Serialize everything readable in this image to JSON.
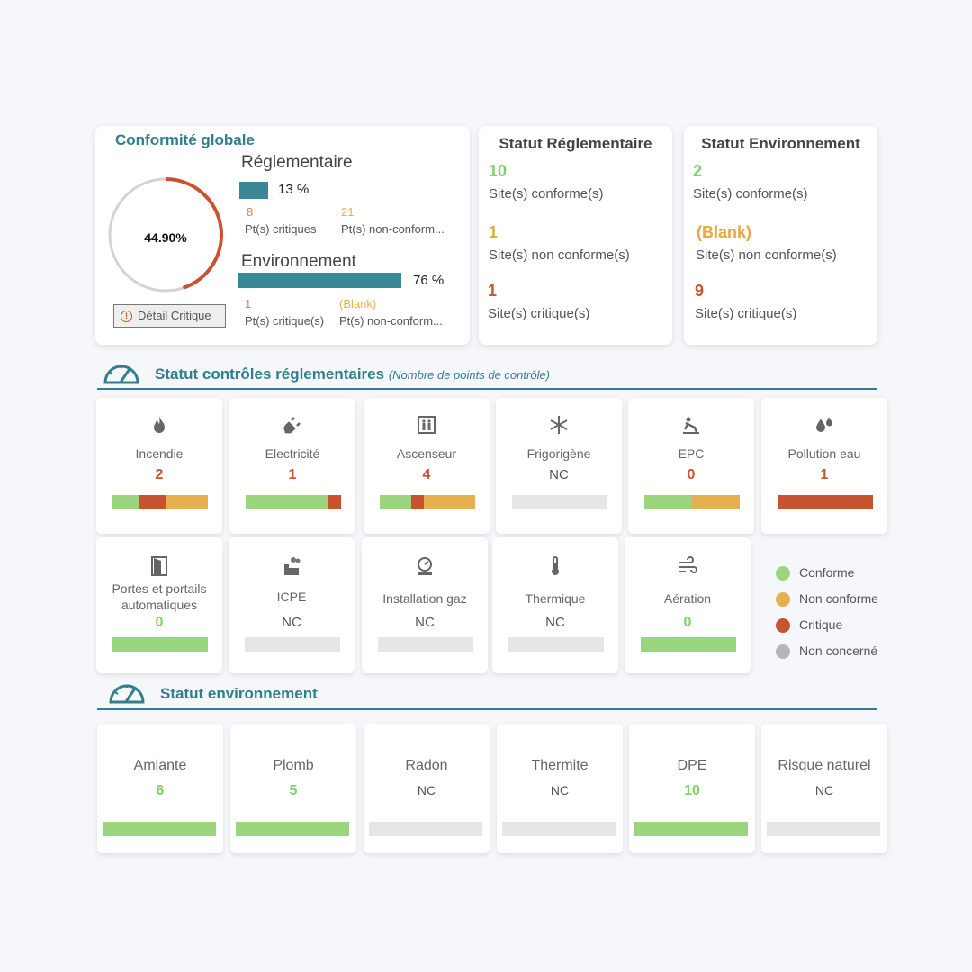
{
  "colors": {
    "green": "#9bd67f",
    "orange": "#e6b04f",
    "red": "#c9532e",
    "grey": "#e6e6e6",
    "teal": "#2f7f8c",
    "tealbar": "#3a8797"
  },
  "global": {
    "title": "Conformité globale",
    "percent": "44.90%",
    "gauge_fraction": 0.449,
    "detail_button": "Détail Critique",
    "reg": {
      "title": "Réglementaire",
      "pct": "13 %",
      "bar_fraction": 0.13,
      "crit_val": "8",
      "crit_lbl": "Pt(s) critiques",
      "nc_val": "21",
      "nc_lbl": "Pt(s) non-conform..."
    },
    "env": {
      "title": "Environnement",
      "pct": "76 %",
      "bar_fraction": 0.76,
      "crit_val": "1",
      "crit_lbl": "Pt(s) critique(s)",
      "nc_val": "(Blank)",
      "nc_lbl": "Pt(s) non-conform..."
    }
  },
  "statut_reg": {
    "title": "Statut Réglementaire",
    "conforme_val": "10",
    "conforme_lbl": "Site(s) conforme(s)",
    "nonconf_val": "1",
    "nonconf_lbl": "Site(s) non conforme(s)",
    "crit_val": "1",
    "crit_lbl": "Site(s) critique(s)"
  },
  "statut_env": {
    "title": "Statut Environnement",
    "conforme_val": "2",
    "conforme_lbl": "Site(s) conforme(s)",
    "nonconf_val": "(Blank)",
    "nonconf_lbl": "Site(s) non conforme(s)",
    "crit_val": "9",
    "crit_lbl": "Site(s) critique(s)"
  },
  "section_reg": {
    "title": "Statut contrôles réglementaires",
    "subtitle": "(Nombre de points de contrôle)"
  },
  "section_env": {
    "title": "Statut environnement"
  },
  "reg_tiles": [
    {
      "name": "Incendie",
      "value": "2",
      "icon": "fire-icon",
      "segments": [
        [
          "green",
          0.28
        ],
        [
          "red",
          0.28
        ],
        [
          "orange",
          0.44
        ]
      ]
    },
    {
      "name": "Electricité",
      "value": "1",
      "icon": "plug-icon",
      "segments": [
        [
          "green",
          0.87
        ],
        [
          "red",
          0.13
        ]
      ]
    },
    {
      "name": "Ascenseur",
      "value": "4",
      "icon": "elevator-icon",
      "segments": [
        [
          "green",
          0.33
        ],
        [
          "red",
          0.13
        ],
        [
          "orange",
          0.54
        ]
      ]
    },
    {
      "name": "Frigorigène",
      "value": "NC",
      "icon": "snowflake-icon",
      "segments": [
        [
          "grey",
          1
        ]
      ]
    },
    {
      "name": "EPC",
      "value": "0",
      "icon": "fall-protection-icon",
      "segments": [
        [
          "green",
          0.5
        ],
        [
          "orange",
          0.5
        ]
      ]
    },
    {
      "name": "Pollution eau",
      "value": "1",
      "icon": "water-drops-icon",
      "segments": [
        [
          "red",
          1
        ]
      ]
    },
    {
      "name": "Portes et portails automatiques",
      "value": "0",
      "icon": "door-icon",
      "segments": [
        [
          "green",
          1
        ]
      ]
    },
    {
      "name": "ICPE",
      "value": "NC",
      "icon": "factory-icon",
      "segments": [
        [
          "grey",
          1
        ]
      ]
    },
    {
      "name": "Installation gaz",
      "value": "NC",
      "icon": "gas-meter-icon",
      "segments": [
        [
          "grey",
          1
        ]
      ]
    },
    {
      "name": "Thermique",
      "value": "NC",
      "icon": "thermometer-icon",
      "segments": [
        [
          "grey",
          1
        ]
      ]
    },
    {
      "name": "Aération",
      "value": "0",
      "icon": "wind-icon",
      "segments": [
        [
          "green",
          1
        ]
      ]
    }
  ],
  "legend": [
    {
      "label": "Conforme",
      "color": "green"
    },
    {
      "label": "Non conforme",
      "color": "orange"
    },
    {
      "label": "Critique",
      "color": "red"
    },
    {
      "label": "Non concerné",
      "color": "grey2"
    }
  ],
  "env_tiles": [
    {
      "name": "Amiante",
      "value": "6",
      "segments": [
        [
          "green",
          1
        ]
      ]
    },
    {
      "name": "Plomb",
      "value": "5",
      "segments": [
        [
          "green",
          1
        ]
      ]
    },
    {
      "name": "Radon",
      "value": "NC",
      "segments": [
        [
          "grey",
          1
        ]
      ]
    },
    {
      "name": "Thermite",
      "value": "NC",
      "segments": [
        [
          "grey",
          1
        ]
      ]
    },
    {
      "name": "DPE",
      "value": "10",
      "segments": [
        [
          "green",
          1
        ]
      ]
    },
    {
      "name": "Risque naturel",
      "value": "NC",
      "segments": [
        [
          "grey",
          1
        ]
      ]
    }
  ]
}
